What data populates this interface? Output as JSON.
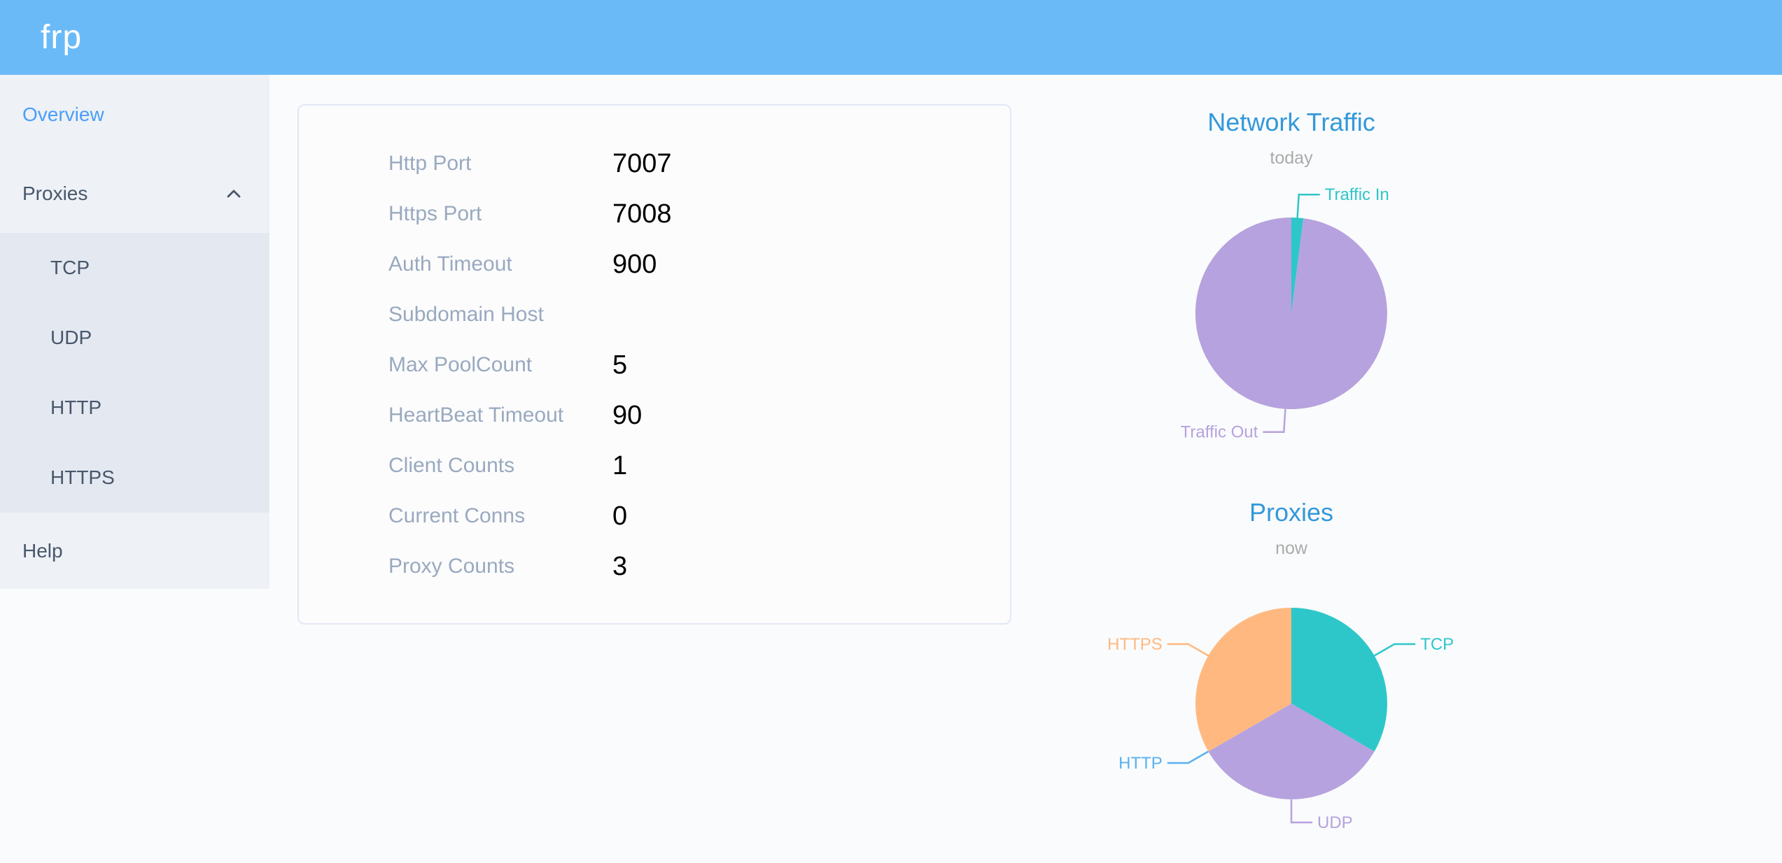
{
  "header": {
    "logo_text": "frp"
  },
  "sidebar": {
    "items": [
      {
        "label": "Overview",
        "active": true
      },
      {
        "label": "Proxies",
        "expanded": true,
        "children": [
          "TCP",
          "UDP",
          "HTTP",
          "HTTPS"
        ]
      },
      {
        "label": "Help"
      }
    ]
  },
  "overview_card": {
    "rows": [
      {
        "label": "Http Port",
        "value": "7007"
      },
      {
        "label": "Https Port",
        "value": "7008"
      },
      {
        "label": "Auth Timeout",
        "value": "900"
      },
      {
        "label": "Subdomain Host",
        "value": ""
      },
      {
        "label": "Max PoolCount",
        "value": "5"
      },
      {
        "label": "HeartBeat Timeout",
        "value": "90"
      },
      {
        "label": "Client Counts",
        "value": "1"
      },
      {
        "label": "Current Conns",
        "value": "0"
      },
      {
        "label": "Proxy Counts",
        "value": "3"
      }
    ]
  },
  "chart_data": [
    {
      "type": "pie",
      "title": "Network Traffic",
      "subtitle": "today",
      "legend_position": "callout-labels",
      "values_are_estimated_percent": true,
      "series": [
        {
          "name": "Traffic In",
          "value": 2,
          "color": "#2ec7c9"
        },
        {
          "name": "Traffic Out",
          "value": 98,
          "color": "#b6a2de"
        }
      ]
    },
    {
      "type": "pie",
      "title": "Proxies",
      "subtitle": "now",
      "legend_position": "callout-labels",
      "series": [
        {
          "name": "TCP",
          "value": 1,
          "color": "#2ec7c9"
        },
        {
          "name": "UDP",
          "value": 1,
          "color": "#b6a2de"
        },
        {
          "name": "HTTP",
          "value": 0,
          "color": "#5ab1ef"
        },
        {
          "name": "HTTPS",
          "value": 1,
          "color": "#ffb980"
        }
      ]
    }
  ],
  "colors": {
    "page_bg": "#fafbfc",
    "header_bg": "#6abaf8",
    "sidebar_bg": "#eef1f6",
    "submenu_bg": "#e4e8f1",
    "menu_text": "#48576a",
    "active_menu_text": "#4a9ef9",
    "card_border": "#e3e7f7",
    "label_text": "#99a9bf",
    "value_text": "#000000",
    "chart_title": "#3398db",
    "chart_subtitle": "#aaaaaa"
  }
}
